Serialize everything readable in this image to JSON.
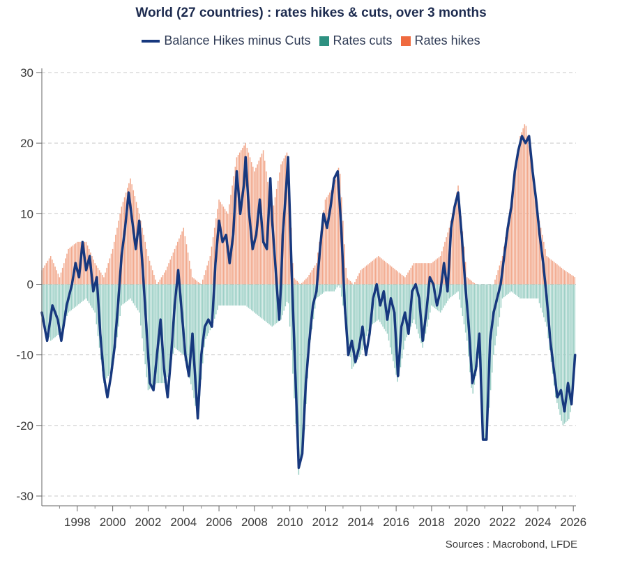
{
  "chart_data": {
    "type": "bar+line",
    "title": "World (27 countries) : rates hikes & cuts, over 3 months",
    "legend": [
      {
        "name": "Balance Hikes minus Cuts",
        "kind": "line",
        "color": "#17387e"
      },
      {
        "name": "Rates cuts",
        "kind": "bar",
        "color": "#2e9181"
      },
      {
        "name": "Rates hikes",
        "kind": "bar",
        "color": "#ef6a3f"
      }
    ],
    "x_ticks": [
      "1998",
      "2000",
      "2002",
      "2004",
      "2006",
      "2008",
      "2010",
      "2012",
      "2014",
      "2016",
      "2018",
      "2020",
      "2022",
      "2024",
      "2026"
    ],
    "y_ticks": [
      30,
      20,
      10,
      0,
      -10,
      -20,
      -30
    ],
    "ylim": [
      -30,
      30
    ],
    "xlim": [
      1996.0,
      2026.15
    ],
    "grid": "horizontal dashed",
    "source": "Sources : Macrobond, LFDE",
    "balance_points": [
      [
        1996.0,
        -4
      ],
      [
        1996.3,
        -8
      ],
      [
        1996.6,
        -3
      ],
      [
        1996.9,
        -5
      ],
      [
        1997.1,
        -8
      ],
      [
        1997.4,
        -3
      ],
      [
        1997.7,
        0
      ],
      [
        1997.9,
        3
      ],
      [
        1998.1,
        1
      ],
      [
        1998.3,
        6
      ],
      [
        1998.5,
        2
      ],
      [
        1998.7,
        4
      ],
      [
        1998.9,
        -1
      ],
      [
        1999.1,
        1
      ],
      [
        1999.3,
        -7
      ],
      [
        1999.5,
        -13
      ],
      [
        1999.7,
        -16
      ],
      [
        1999.9,
        -13
      ],
      [
        2000.1,
        -9
      ],
      [
        2000.3,
        -3
      ],
      [
        2000.5,
        4
      ],
      [
        2000.7,
        8
      ],
      [
        2000.9,
        13
      ],
      [
        2001.1,
        9
      ],
      [
        2001.3,
        5
      ],
      [
        2001.5,
        9
      ],
      [
        2001.7,
        2
      ],
      [
        2001.9,
        -6
      ],
      [
        2002.1,
        -14
      ],
      [
        2002.3,
        -15
      ],
      [
        2002.5,
        -10
      ],
      [
        2002.7,
        -5
      ],
      [
        2002.9,
        -12
      ],
      [
        2003.1,
        -16
      ],
      [
        2003.3,
        -10
      ],
      [
        2003.5,
        -3
      ],
      [
        2003.7,
        2
      ],
      [
        2003.9,
        -4
      ],
      [
        2004.1,
        -10
      ],
      [
        2004.3,
        -13
      ],
      [
        2004.5,
        -7
      ],
      [
        2004.6,
        -11
      ],
      [
        2004.8,
        -19
      ],
      [
        2005.0,
        -10
      ],
      [
        2005.2,
        -6
      ],
      [
        2005.4,
        -5
      ],
      [
        2005.6,
        -6
      ],
      [
        2005.8,
        3
      ],
      [
        2006.0,
        9
      ],
      [
        2006.2,
        6
      ],
      [
        2006.4,
        7
      ],
      [
        2006.6,
        3
      ],
      [
        2006.8,
        7
      ],
      [
        2007.0,
        16
      ],
      [
        2007.2,
        10
      ],
      [
        2007.4,
        14
      ],
      [
        2007.5,
        18
      ],
      [
        2007.7,
        10
      ],
      [
        2007.9,
        5
      ],
      [
        2008.1,
        7
      ],
      [
        2008.3,
        12
      ],
      [
        2008.5,
        6
      ],
      [
        2008.7,
        5
      ],
      [
        2008.9,
        15
      ],
      [
        2009.0,
        9
      ],
      [
        2009.2,
        2
      ],
      [
        2009.4,
        -5
      ],
      [
        2009.5,
        0
      ],
      [
        2009.6,
        7
      ],
      [
        2009.8,
        14
      ],
      [
        2009.9,
        18
      ],
      [
        2010.1,
        2
      ],
      [
        2010.3,
        -12
      ],
      [
        2010.5,
        -26
      ],
      [
        2010.7,
        -24
      ],
      [
        2010.9,
        -14
      ],
      [
        2011.1,
        -8
      ],
      [
        2011.3,
        -3
      ],
      [
        2011.5,
        -1
      ],
      [
        2011.7,
        5
      ],
      [
        2011.9,
        10
      ],
      [
        2012.1,
        8
      ],
      [
        2012.3,
        11
      ],
      [
        2012.5,
        15
      ],
      [
        2012.7,
        16
      ],
      [
        2012.9,
        8
      ],
      [
        2013.1,
        -3
      ],
      [
        2013.3,
        -10
      ],
      [
        2013.5,
        -8
      ],
      [
        2013.7,
        -11
      ],
      [
        2013.9,
        -9
      ],
      [
        2014.1,
        -6
      ],
      [
        2014.3,
        -10
      ],
      [
        2014.5,
        -7
      ],
      [
        2014.7,
        -2
      ],
      [
        2014.9,
        0
      ],
      [
        2015.1,
        -3
      ],
      [
        2015.3,
        -1
      ],
      [
        2015.5,
        -5
      ],
      [
        2015.7,
        -2
      ],
      [
        2015.9,
        -4
      ],
      [
        2016.1,
        -13
      ],
      [
        2016.3,
        -6
      ],
      [
        2016.5,
        -4
      ],
      [
        2016.7,
        -7
      ],
      [
        2016.9,
        -1
      ],
      [
        2017.1,
        0
      ],
      [
        2017.3,
        -2
      ],
      [
        2017.5,
        -8
      ],
      [
        2017.7,
        -4
      ],
      [
        2017.9,
        1
      ],
      [
        2018.1,
        0
      ],
      [
        2018.3,
        -3
      ],
      [
        2018.5,
        -1
      ],
      [
        2018.7,
        3
      ],
      [
        2018.9,
        -1
      ],
      [
        2019.1,
        8
      ],
      [
        2019.3,
        11
      ],
      [
        2019.5,
        13
      ],
      [
        2019.7,
        7
      ],
      [
        2019.9,
        0
      ],
      [
        2020.1,
        -6
      ],
      [
        2020.3,
        -14
      ],
      [
        2020.5,
        -12
      ],
      [
        2020.7,
        -7
      ],
      [
        2020.9,
        -22
      ],
      [
        2021.1,
        -22
      ],
      [
        2021.3,
        -8
      ],
      [
        2021.5,
        -4
      ],
      [
        2021.7,
        -2
      ],
      [
        2021.9,
        0
      ],
      [
        2022.1,
        4
      ],
      [
        2022.3,
        8
      ],
      [
        2022.5,
        11
      ],
      [
        2022.7,
        16
      ],
      [
        2022.9,
        19
      ],
      [
        2023.1,
        21
      ],
      [
        2023.3,
        20
      ],
      [
        2023.5,
        21
      ],
      [
        2023.7,
        16
      ],
      [
        2023.9,
        12
      ],
      [
        2024.1,
        7
      ],
      [
        2024.3,
        3
      ],
      [
        2024.5,
        -2
      ],
      [
        2024.7,
        -8
      ],
      [
        2024.9,
        -12
      ],
      [
        2025.1,
        -16
      ],
      [
        2025.3,
        -15
      ],
      [
        2025.5,
        -18
      ],
      [
        2025.7,
        -14
      ],
      [
        2025.9,
        -17
      ],
      [
        2026.1,
        -10
      ]
    ],
    "hikes_points": [
      [
        1996.0,
        2
      ],
      [
        1996.5,
        4
      ],
      [
        1997.0,
        1
      ],
      [
        1997.5,
        5
      ],
      [
        1998.0,
        6
      ],
      [
        1998.5,
        6
      ],
      [
        1999.0,
        3
      ],
      [
        1999.5,
        1
      ],
      [
        2000.0,
        5
      ],
      [
        2000.5,
        11
      ],
      [
        2001.0,
        15
      ],
      [
        2001.5,
        10
      ],
      [
        2002.0,
        4
      ],
      [
        2002.5,
        0
      ],
      [
        2003.0,
        2
      ],
      [
        2003.5,
        5
      ],
      [
        2004.0,
        8
      ],
      [
        2004.5,
        1
      ],
      [
        2005.0,
        0
      ],
      [
        2005.5,
        4
      ],
      [
        2006.0,
        12
      ],
      [
        2006.5,
        10
      ],
      [
        2007.0,
        18
      ],
      [
        2007.5,
        20
      ],
      [
        2008.0,
        16
      ],
      [
        2008.5,
        19
      ],
      [
        2009.0,
        10
      ],
      [
        2009.5,
        17
      ],
      [
        2009.9,
        19
      ],
      [
        2010.2,
        1
      ],
      [
        2010.6,
        0
      ],
      [
        2011.0,
        1
      ],
      [
        2011.5,
        3
      ],
      [
        2012.0,
        12
      ],
      [
        2012.5,
        14
      ],
      [
        2012.8,
        17
      ],
      [
        2013.2,
        1
      ],
      [
        2013.6,
        0
      ],
      [
        2014.0,
        2
      ],
      [
        2014.5,
        3
      ],
      [
        2015.0,
        4
      ],
      [
        2015.5,
        3
      ],
      [
        2016.0,
        2
      ],
      [
        2016.5,
        1
      ],
      [
        2017.0,
        3
      ],
      [
        2017.5,
        3
      ],
      [
        2018.0,
        3
      ],
      [
        2018.5,
        4
      ],
      [
        2019.0,
        8
      ],
      [
        2019.5,
        14
      ],
      [
        2020.0,
        1
      ],
      [
        2020.5,
        0
      ],
      [
        2021.0,
        0
      ],
      [
        2021.5,
        0
      ],
      [
        2022.0,
        4
      ],
      [
        2022.5,
        12
      ],
      [
        2023.0,
        21
      ],
      [
        2023.3,
        23
      ],
      [
        2023.6,
        18
      ],
      [
        2024.0,
        10
      ],
      [
        2024.5,
        4
      ],
      [
        2025.0,
        3
      ],
      [
        2025.5,
        2
      ],
      [
        2026.1,
        1
      ]
    ],
    "cuts_points": [
      [
        1996.0,
        -5
      ],
      [
        1996.5,
        -8
      ],
      [
        1997.0,
        -7
      ],
      [
        1997.5,
        -4
      ],
      [
        1998.0,
        -3
      ],
      [
        1998.5,
        -2
      ],
      [
        1999.0,
        -4
      ],
      [
        1999.5,
        -14
      ],
      [
        2000.0,
        -12
      ],
      [
        2000.5,
        -3
      ],
      [
        2001.0,
        -2
      ],
      [
        2001.5,
        -4
      ],
      [
        2002.0,
        -15
      ],
      [
        2002.5,
        -14
      ],
      [
        2003.0,
        -14
      ],
      [
        2003.5,
        -9
      ],
      [
        2004.0,
        -10
      ],
      [
        2004.5,
        -15
      ],
      [
        2004.8,
        -19
      ],
      [
        2005.2,
        -8
      ],
      [
        2005.6,
        -6
      ],
      [
        2006.0,
        -3
      ],
      [
        2006.5,
        -3
      ],
      [
        2007.0,
        -3
      ],
      [
        2007.5,
        -3
      ],
      [
        2008.0,
        -4
      ],
      [
        2008.5,
        -5
      ],
      [
        2009.0,
        -6
      ],
      [
        2009.5,
        -5
      ],
      [
        2009.9,
        -2
      ],
      [
        2010.2,
        -14
      ],
      [
        2010.5,
        -27
      ],
      [
        2010.8,
        -22
      ],
      [
        2011.1,
        -9
      ],
      [
        2011.5,
        -2
      ],
      [
        2012.0,
        -1
      ],
      [
        2012.5,
        -1
      ],
      [
        2012.8,
        0
      ],
      [
        2013.2,
        -6
      ],
      [
        2013.5,
        -12
      ],
      [
        2014.0,
        -10
      ],
      [
        2014.5,
        -6
      ],
      [
        2015.0,
        -5
      ],
      [
        2015.5,
        -7
      ],
      [
        2016.1,
        -14
      ],
      [
        2016.5,
        -8
      ],
      [
        2017.0,
        -5
      ],
      [
        2017.5,
        -9
      ],
      [
        2018.0,
        -3
      ],
      [
        2018.5,
        -4
      ],
      [
        2019.0,
        -2
      ],
      [
        2019.5,
        -1
      ],
      [
        2020.0,
        -8
      ],
      [
        2020.3,
        -16
      ],
      [
        2020.7,
        -10
      ],
      [
        2020.9,
        -22
      ],
      [
        2021.1,
        -22
      ],
      [
        2021.5,
        -10
      ],
      [
        2022.0,
        -2
      ],
      [
        2022.5,
        -1
      ],
      [
        2023.0,
        -2
      ],
      [
        2023.5,
        -2
      ],
      [
        2024.0,
        -2
      ],
      [
        2024.5,
        -6
      ],
      [
        2025.0,
        -16
      ],
      [
        2025.4,
        -20
      ],
      [
        2025.8,
        -19
      ],
      [
        2026.1,
        -11
      ]
    ]
  }
}
